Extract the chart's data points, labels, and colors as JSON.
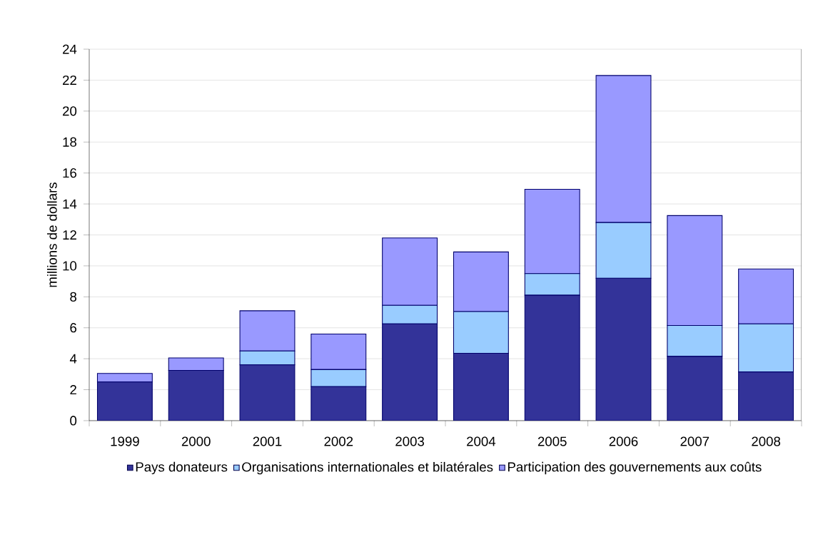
{
  "chart_data": {
    "type": "bar",
    "stacked": true,
    "ylabel": "millions de dollars",
    "categories": [
      "1999",
      "2000",
      "2001",
      "2002",
      "2003",
      "2004",
      "2005",
      "2006",
      "2007",
      "2008"
    ],
    "series": [
      {
        "name": "Pays donateurs",
        "color": "#333399",
        "values": [
          2.5,
          3.25,
          3.6,
          2.2,
          6.25,
          4.35,
          8.1,
          9.2,
          4.15,
          3.15
        ]
      },
      {
        "name": "Organisations internationales et bilatérales",
        "color": "#99ccff",
        "values": [
          null,
          null,
          0.9,
          1.1,
          1.2,
          2.7,
          1.4,
          3.6,
          2.0,
          3.1
        ]
      },
      {
        "name": "Participation des gouvernements aux coûts",
        "color": "#9999ff",
        "values": [
          0.55,
          0.8,
          2.6,
          2.3,
          4.35,
          3.85,
          5.45,
          9.5,
          7.1,
          3.55
        ]
      }
    ],
    "ylim": [
      0,
      24
    ],
    "yticks": [
      0,
      2,
      4,
      6,
      8,
      10,
      12,
      14,
      16,
      18,
      20,
      22,
      24
    ],
    "grid": "y",
    "legend": "bottom"
  }
}
